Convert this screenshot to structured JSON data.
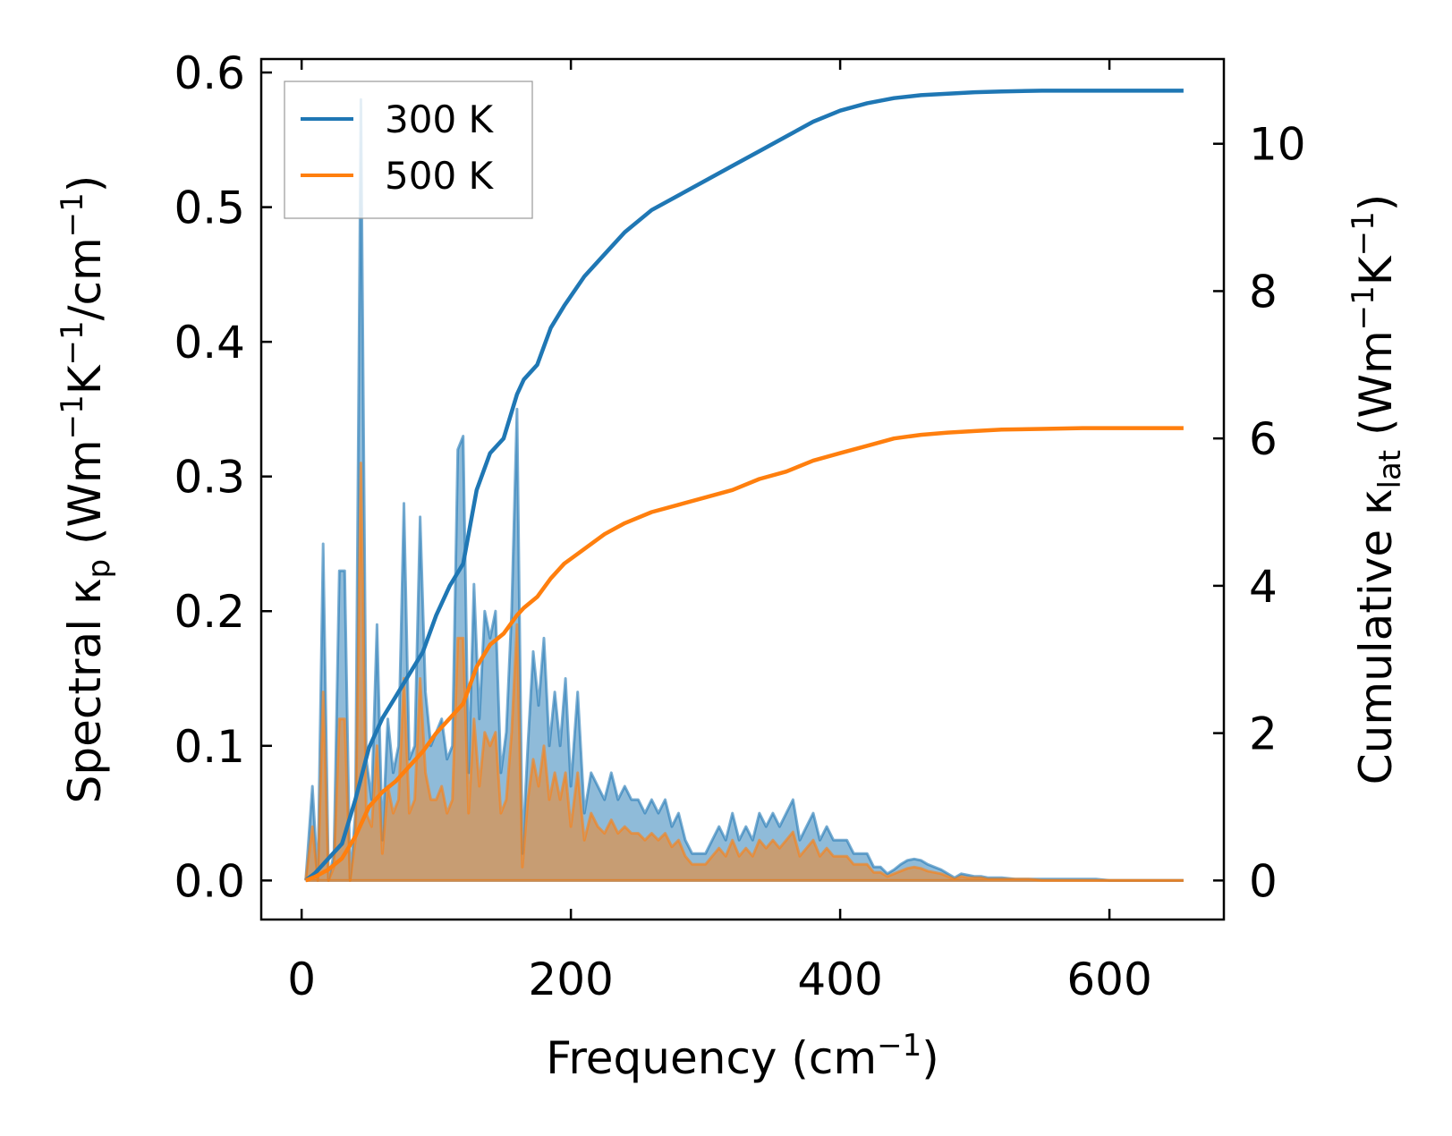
{
  "chart_data": {
    "type": "line",
    "xlabel": "Frequency (cm",
    "xlabel_sup": "−1",
    "xlabel_tail": ")",
    "ylabel_left": {
      "prefix": "Spectral κ",
      "sub": "p",
      "mid": " (Wm",
      "sup1": "−1",
      "k": "K",
      "sup2": "−1",
      "unit": "/cm",
      "sup3": "−1",
      "tail": ")"
    },
    "ylabel_right": {
      "prefix": "Cumulative κ",
      "sub": "lat",
      "mid": " (Wm",
      "sup1": "−1",
      "k": "K",
      "sup2": "−1",
      "tail": ")"
    },
    "xlim": [
      -30,
      685
    ],
    "ylim_left": [
      -0.029,
      0.61
    ],
    "ylim_right": [
      -0.53,
      11.15
    ],
    "xticks": [
      0,
      200,
      400,
      600
    ],
    "xtick_labels": [
      "0",
      "200",
      "400",
      "600"
    ],
    "yticks_left": [
      0.0,
      0.1,
      0.2,
      0.3,
      0.4,
      0.5,
      0.6
    ],
    "ytick_labels_left": [
      "0.0",
      "0.1",
      "0.2",
      "0.3",
      "0.4",
      "0.5",
      "0.6"
    ],
    "yticks_right": [
      0,
      2,
      4,
      6,
      8,
      10
    ],
    "ytick_labels_right": [
      "0",
      "2",
      "4",
      "6",
      "8",
      "10"
    ],
    "legend_position": "top-left",
    "series": [
      {
        "name": "300 K",
        "color": "#1f77b4",
        "fill_color": "#1f77b4",
        "spectral": {
          "x": [
            3,
            8,
            12,
            16,
            20,
            24,
            28,
            32,
            36,
            40,
            44,
            48,
            52,
            56,
            60,
            64,
            68,
            72,
            76,
            80,
            84,
            88,
            92,
            96,
            100,
            104,
            108,
            112,
            116,
            120,
            124,
            128,
            132,
            136,
            140,
            144,
            148,
            152,
            156,
            160,
            164,
            168,
            172,
            176,
            180,
            184,
            188,
            192,
            196,
            200,
            205,
            210,
            215,
            220,
            225,
            230,
            235,
            240,
            245,
            250,
            255,
            260,
            265,
            270,
            275,
            280,
            285,
            290,
            295,
            300,
            305,
            310,
            315,
            320,
            325,
            330,
            335,
            340,
            345,
            350,
            355,
            360,
            365,
            370,
            375,
            380,
            385,
            390,
            395,
            400,
            405,
            410,
            415,
            420,
            425,
            430,
            435,
            440,
            445,
            450,
            455,
            460,
            465,
            470,
            475,
            480,
            485,
            490,
            495,
            500,
            505,
            510,
            520,
            530,
            540,
            550,
            560,
            570,
            580,
            590,
            600,
            610,
            620,
            630,
            640,
            655
          ],
          "y": [
            0.0,
            0.07,
            0.0,
            0.25,
            0.0,
            0.02,
            0.23,
            0.23,
            0.0,
            0.05,
            0.58,
            0.09,
            0.06,
            0.19,
            0.03,
            0.12,
            0.08,
            0.1,
            0.28,
            0.09,
            0.1,
            0.27,
            0.14,
            0.1,
            0.11,
            0.12,
            0.09,
            0.1,
            0.32,
            0.33,
            0.08,
            0.22,
            0.12,
            0.2,
            0.18,
            0.2,
            0.08,
            0.11,
            0.2,
            0.35,
            0.02,
            0.1,
            0.17,
            0.13,
            0.18,
            0.1,
            0.14,
            0.1,
            0.15,
            0.07,
            0.14,
            0.05,
            0.08,
            0.07,
            0.06,
            0.08,
            0.06,
            0.07,
            0.06,
            0.06,
            0.05,
            0.06,
            0.05,
            0.06,
            0.04,
            0.05,
            0.03,
            0.02,
            0.02,
            0.02,
            0.03,
            0.04,
            0.03,
            0.05,
            0.03,
            0.04,
            0.03,
            0.05,
            0.04,
            0.05,
            0.04,
            0.05,
            0.06,
            0.03,
            0.04,
            0.05,
            0.03,
            0.04,
            0.03,
            0.03,
            0.03,
            0.02,
            0.02,
            0.02,
            0.01,
            0.01,
            0.005,
            0.008,
            0.012,
            0.015,
            0.016,
            0.015,
            0.012,
            0.01,
            0.008,
            0.005,
            0.002,
            0.005,
            0.004,
            0.003,
            0.003,
            0.002,
            0.002,
            0.001,
            0.001,
            0.001,
            0.001,
            0.001,
            0.001,
            0.001,
            0.0,
            0.0,
            0.0,
            0.0,
            0.0,
            0.0
          ]
        },
        "cumulative": {
          "x": [
            3,
            10,
            20,
            30,
            40,
            50,
            60,
            70,
            80,
            90,
            100,
            110,
            120,
            130,
            140,
            150,
            160,
            165,
            175,
            185,
            195,
            210,
            225,
            240,
            260,
            280,
            300,
            320,
            340,
            360,
            380,
            400,
            420,
            440,
            460,
            480,
            500,
            520,
            550,
            580,
            620,
            655
          ],
          "y": [
            0.0,
            0.1,
            0.3,
            0.5,
            1.1,
            1.8,
            2.2,
            2.5,
            2.8,
            3.1,
            3.6,
            4.0,
            4.3,
            5.3,
            5.8,
            6.0,
            6.6,
            6.8,
            7.0,
            7.5,
            7.8,
            8.2,
            8.5,
            8.8,
            9.1,
            9.3,
            9.5,
            9.7,
            9.9,
            10.1,
            10.3,
            10.45,
            10.55,
            10.62,
            10.66,
            10.68,
            10.7,
            10.71,
            10.72,
            10.72,
            10.72,
            10.72
          ]
        }
      },
      {
        "name": "500 K",
        "color": "#ff7f0e",
        "fill_color": "#ff7f0e",
        "spectral": {
          "x": [
            3,
            8,
            12,
            16,
            20,
            24,
            28,
            32,
            36,
            40,
            44,
            48,
            52,
            56,
            60,
            64,
            68,
            72,
            76,
            80,
            84,
            88,
            92,
            96,
            100,
            104,
            108,
            112,
            116,
            120,
            124,
            128,
            132,
            136,
            140,
            144,
            148,
            152,
            156,
            160,
            164,
            168,
            172,
            176,
            180,
            184,
            188,
            192,
            196,
            200,
            205,
            210,
            215,
            220,
            225,
            230,
            235,
            240,
            245,
            250,
            255,
            260,
            265,
            270,
            275,
            280,
            285,
            290,
            295,
            300,
            305,
            310,
            315,
            320,
            325,
            330,
            335,
            340,
            345,
            350,
            355,
            360,
            365,
            370,
            375,
            380,
            385,
            390,
            395,
            400,
            405,
            410,
            415,
            420,
            425,
            430,
            435,
            440,
            445,
            450,
            455,
            460,
            465,
            470,
            475,
            480,
            485,
            490,
            495,
            500,
            505,
            510,
            520,
            530,
            540,
            550,
            560,
            570,
            580,
            590,
            600,
            610,
            620,
            630,
            640,
            655
          ],
          "y": [
            0.0,
            0.04,
            0.0,
            0.14,
            0.0,
            0.01,
            0.12,
            0.12,
            0.0,
            0.03,
            0.31,
            0.05,
            0.04,
            0.1,
            0.02,
            0.07,
            0.05,
            0.06,
            0.15,
            0.05,
            0.06,
            0.15,
            0.08,
            0.06,
            0.06,
            0.07,
            0.05,
            0.06,
            0.18,
            0.18,
            0.05,
            0.12,
            0.07,
            0.11,
            0.1,
            0.11,
            0.05,
            0.06,
            0.11,
            0.19,
            0.01,
            0.06,
            0.09,
            0.07,
            0.1,
            0.06,
            0.08,
            0.06,
            0.08,
            0.04,
            0.08,
            0.03,
            0.05,
            0.04,
            0.035,
            0.045,
            0.035,
            0.04,
            0.035,
            0.035,
            0.03,
            0.035,
            0.03,
            0.035,
            0.025,
            0.03,
            0.018,
            0.012,
            0.012,
            0.012,
            0.018,
            0.024,
            0.018,
            0.03,
            0.018,
            0.024,
            0.018,
            0.03,
            0.024,
            0.03,
            0.024,
            0.03,
            0.036,
            0.018,
            0.024,
            0.03,
            0.018,
            0.024,
            0.018,
            0.018,
            0.018,
            0.012,
            0.012,
            0.012,
            0.006,
            0.006,
            0.003,
            0.005,
            0.007,
            0.009,
            0.01,
            0.009,
            0.007,
            0.006,
            0.005,
            0.003,
            0.001,
            0.003,
            0.002,
            0.002,
            0.002,
            0.001,
            0.001,
            0.001,
            0.001,
            0.0,
            0.0,
            0.0,
            0.0,
            0.0,
            0.0,
            0.0,
            0.0,
            0.0,
            0.0,
            0.0
          ]
        },
        "cumulative": {
          "x": [
            3,
            10,
            20,
            30,
            40,
            50,
            60,
            70,
            80,
            90,
            100,
            110,
            120,
            130,
            140,
            150,
            160,
            165,
            175,
            185,
            195,
            210,
            225,
            240,
            260,
            280,
            300,
            320,
            340,
            360,
            380,
            400,
            420,
            440,
            460,
            480,
            500,
            520,
            550,
            580,
            620,
            655
          ],
          "y": [
            0.0,
            0.05,
            0.15,
            0.3,
            0.6,
            1.0,
            1.2,
            1.35,
            1.55,
            1.75,
            2.0,
            2.2,
            2.4,
            2.9,
            3.2,
            3.35,
            3.6,
            3.7,
            3.85,
            4.1,
            4.3,
            4.5,
            4.7,
            4.85,
            5.0,
            5.1,
            5.2,
            5.3,
            5.45,
            5.55,
            5.7,
            5.8,
            5.9,
            6.0,
            6.05,
            6.08,
            6.1,
            6.12,
            6.13,
            6.14,
            6.14,
            6.14
          ]
        }
      }
    ]
  }
}
